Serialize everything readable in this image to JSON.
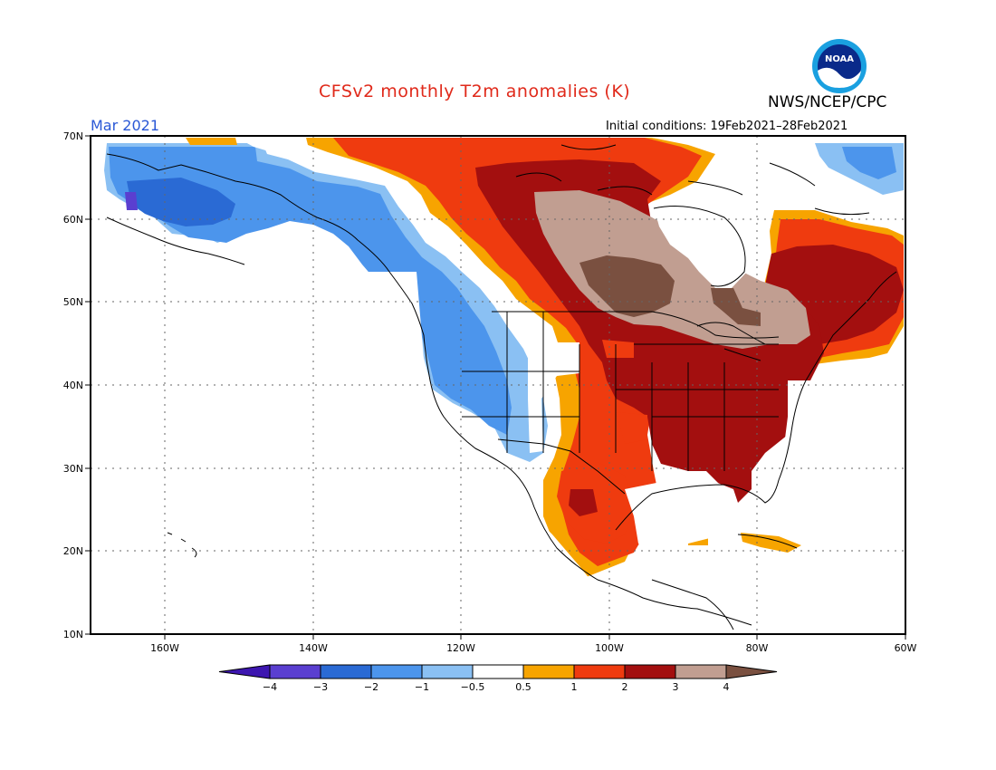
{
  "title": "CFSv2 monthly T2m anomalies (K)",
  "agency": "NWS/NCEP/CPC",
  "logo_text": "NOAA",
  "period": "Mar 2021",
  "initial_conditions": "Initial conditions: 19Feb2021–28Feb2021",
  "map": {
    "lat_labels": [
      "70N",
      "60N",
      "50N",
      "40N",
      "30N",
      "20N",
      "10N"
    ],
    "lon_labels": [
      "160W",
      "140W",
      "120W",
      "100W",
      "80W",
      "60W"
    ]
  },
  "legend": {
    "tick_labels": [
      "−4",
      "−3",
      "−2",
      "−1",
      "−0.5",
      "0.5",
      "1",
      "2",
      "3",
      "4"
    ],
    "colors": [
      "#3d16b0",
      "#5a3fd0",
      "#2a6ad4",
      "#4c95ec",
      "#8ac0f3",
      "#ffffff",
      "#f7a400",
      "#ef3b0f",
      "#a30f0f",
      "#c19e91",
      "#7a5040"
    ]
  }
}
